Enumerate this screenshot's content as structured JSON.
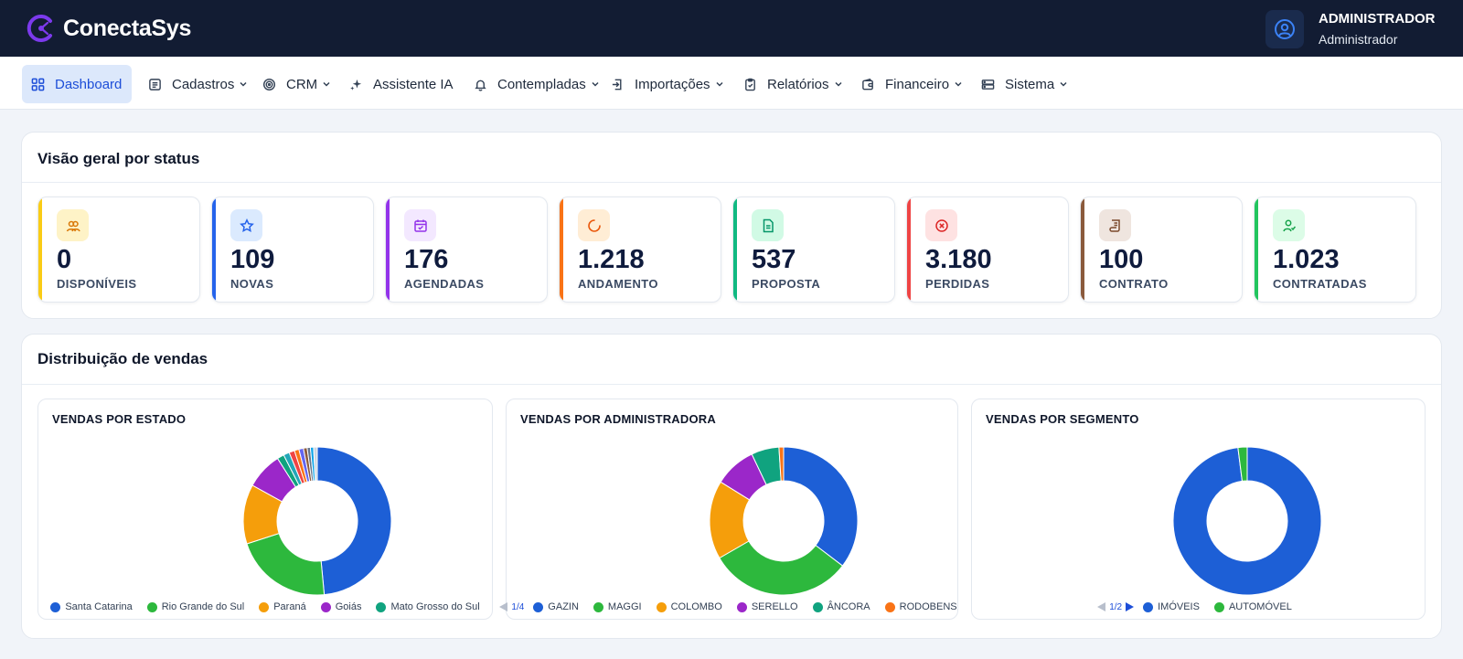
{
  "app": {
    "name": "ConectaSys"
  },
  "user": {
    "name": "ADMINISTRADOR",
    "role": "Administrador"
  },
  "nav": [
    {
      "label": "Dashboard",
      "icon": "grid-icon",
      "dropdown": false,
      "active": true
    },
    {
      "label": "Cadastros",
      "icon": "list-icon",
      "dropdown": true
    },
    {
      "label": "CRM",
      "icon": "target-icon",
      "dropdown": true
    },
    {
      "label": "Assistente IA",
      "icon": "sparkles-icon",
      "dropdown": false
    },
    {
      "label": "Contempladas",
      "icon": "bell-icon",
      "dropdown": true
    },
    {
      "label": "Importações",
      "icon": "import-icon",
      "dropdown": true
    },
    {
      "label": "Relatórios",
      "icon": "clipboard-icon",
      "dropdown": true
    },
    {
      "label": "Financeiro",
      "icon": "wallet-icon",
      "dropdown": true
    },
    {
      "label": "Sistema",
      "icon": "server-icon",
      "dropdown": true
    }
  ],
  "status_overview": {
    "title": "Visão geral por status",
    "cards": [
      {
        "value": "0",
        "label": "DISPONÍVEIS",
        "color": "#facc15",
        "icon_bg": "#fef3c7",
        "icon": "users-icon"
      },
      {
        "value": "109",
        "label": "NOVAS",
        "color": "#2563eb",
        "icon_bg": "#dbeafe",
        "icon": "star-icon"
      },
      {
        "value": "176",
        "label": "AGENDADAS",
        "color": "#9333ea",
        "icon_bg": "#f3e8ff",
        "icon": "calendar-check-icon"
      },
      {
        "value": "1.218",
        "label": "ANDAMENTO",
        "color": "#f97316",
        "icon_bg": "#ffedd5",
        "icon": "loader-icon"
      },
      {
        "value": "537",
        "label": "PROPOSTA",
        "color": "#10b981",
        "icon_bg": "#d1fae5",
        "icon": "document-icon"
      },
      {
        "value": "3.180",
        "label": "PERDIDAS",
        "color": "#ef4444",
        "icon_bg": "#fee2e2",
        "icon": "x-circle-icon"
      },
      {
        "value": "100",
        "label": "CONTRATO",
        "color": "#8b5a3c",
        "icon_bg": "#efe5df",
        "icon": "scroll-icon"
      },
      {
        "value": "1.023",
        "label": "CONTRATADAS",
        "color": "#22c55e",
        "icon_bg": "#dcfce7",
        "icon": "user-check-icon"
      }
    ]
  },
  "sales_distribution": {
    "title": "Distribuição de vendas"
  },
  "chart_data": [
    {
      "type": "pie",
      "title": "VENDAS POR ESTADO",
      "donut": true,
      "slices": [
        {
          "name": "Santa Catarina",
          "value": 48.5,
          "color": "#1d5fd6"
        },
        {
          "name": "Rio Grande do Sul",
          "value": 21.5,
          "color": "#2db83d"
        },
        {
          "name": "Paraná",
          "value": 13,
          "color": "#f59e0b"
        },
        {
          "name": "Goiás",
          "value": 8,
          "color": "#9b27c9"
        },
        {
          "name": "Mato Grosso do Sul",
          "value": 1.5,
          "color": "#10a37f"
        },
        {
          "name": "",
          "value": 1.3,
          "color": "#22a7b8"
        },
        {
          "name": "",
          "value": 1.2,
          "color": "#ef4444"
        },
        {
          "name": "",
          "value": 1.0,
          "color": "#f97316"
        },
        {
          "name": "",
          "value": 1.0,
          "color": "#6366f1"
        },
        {
          "name": "",
          "value": 0.8,
          "color": "#8b5a3c"
        },
        {
          "name": "",
          "value": 0.7,
          "color": "#64748b"
        },
        {
          "name": "",
          "value": 0.7,
          "color": "#0ea5e9"
        },
        {
          "name": "",
          "value": 0.8,
          "color": "#cbd5e1"
        }
      ],
      "legend": [
        "Santa Catarina",
        "Rio Grande do Sul",
        "Paraná",
        "Goiás",
        "Mato Grosso do Sul"
      ],
      "pager": ""
    },
    {
      "type": "pie",
      "title": "VENDAS POR ADMINISTRADORA",
      "donut": true,
      "slices": [
        {
          "name": "GAZIN",
          "value": 35,
          "color": "#1d5fd6"
        },
        {
          "name": "MAGGI",
          "value": 31,
          "color": "#2db83d"
        },
        {
          "name": "COLOMBO",
          "value": 17,
          "color": "#f59e0b"
        },
        {
          "name": "SERELLO",
          "value": 9,
          "color": "#9b27c9"
        },
        {
          "name": "ÂNCORA",
          "value": 6,
          "color": "#10a37f"
        },
        {
          "name": "RODOBENS",
          "value": 1,
          "color": "#f97316"
        }
      ],
      "legend": [
        "GAZIN",
        "MAGGI",
        "COLOMBO",
        "SERELLO",
        "ÂNCORA",
        "RODOBENS"
      ],
      "pager": "1/4"
    },
    {
      "type": "pie",
      "title": "VENDAS POR SEGMENTO",
      "donut": true,
      "slices": [
        {
          "name": "IMÓVEIS",
          "value": 98,
          "color": "#1d5fd6"
        },
        {
          "name": "AUTOMÓVEL",
          "value": 2,
          "color": "#2db83d"
        }
      ],
      "legend": [
        "IMÓVEIS",
        "AUTOMÓVEL"
      ],
      "pager": "1/2"
    }
  ]
}
